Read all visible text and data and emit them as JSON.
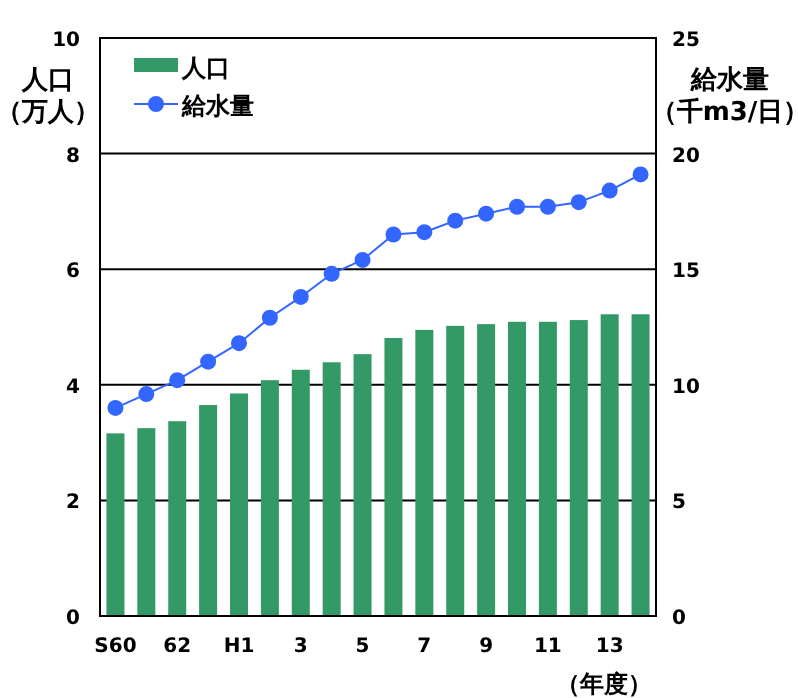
{
  "chart_data": {
    "type": "bar",
    "categories": [
      "S60",
      null,
      "62",
      null,
      "H1",
      null,
      "3",
      null,
      "5",
      null,
      "7",
      null,
      "9",
      null,
      "11",
      null,
      "13",
      null
    ],
    "series": [
      {
        "name": "人口",
        "color": "#339966",
        "values": [
          3.16,
          3.25,
          3.37,
          3.65,
          3.85,
          4.08,
          4.26,
          4.39,
          4.53,
          4.81,
          4.95,
          5.02,
          5.05,
          5.09,
          5.09,
          5.12,
          5.22,
          5.22
        ]
      },
      {
        "name": "給水量",
        "type": "line",
        "axis": "y2",
        "color": "#3366ff",
        "marker": "circle",
        "values": [
          9.0,
          9.6,
          10.2,
          11.0,
          11.8,
          12.9,
          13.8,
          14.8,
          15.4,
          16.5,
          16.6,
          17.1,
          17.4,
          17.7,
          17.7,
          17.9,
          18.4,
          19.1
        ]
      }
    ],
    "ylabel": "人口（万人）",
    "y2label": "給水量（千m3/日）",
    "xlabel": "（年度）",
    "ylim": [
      0,
      10
    ],
    "yticks": [
      0,
      2,
      4,
      6,
      8,
      10
    ],
    "y2lim": [
      0,
      25
    ],
    "y2ticks": [
      0,
      5,
      10,
      15,
      20,
      25
    ],
    "grid": "y",
    "legend": "top left"
  }
}
